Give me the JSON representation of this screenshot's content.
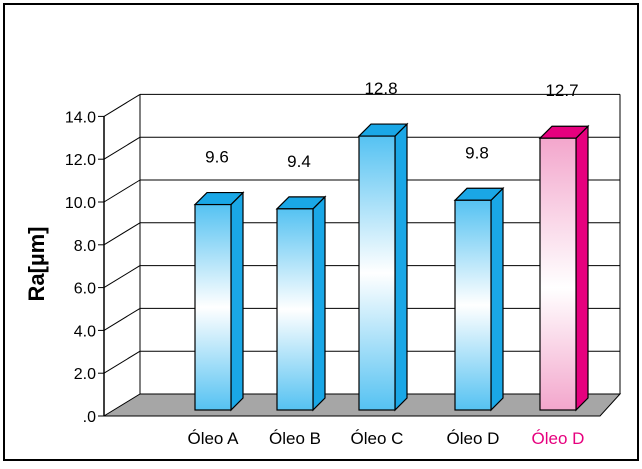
{
  "chart_data": {
    "type": "bar",
    "title": "",
    "xlabel": "",
    "ylabel": "Ra[µm]",
    "ylim": [
      0,
      14
    ],
    "yticks": [
      ".0",
      "2.0",
      "4.0",
      "6.0",
      "8.0",
      "10.0",
      "12.0",
      "14.0"
    ],
    "grid": true,
    "three_d": true,
    "categories": [
      "Óleo A",
      "Óleo B",
      "Óleo C",
      "Óleo D",
      "Óleo D"
    ],
    "values": [
      9.6,
      9.4,
      12.8,
      9.8,
      12.7
    ],
    "data_labels": [
      "9.6",
      "9.4",
      "12.8",
      "9.8",
      "12.7"
    ],
    "bar_colors": [
      "#1aa7e6",
      "#1aa7e6",
      "#1aa7e6",
      "#1aa7e6",
      "#e6007e"
    ],
    "category_label_colors": [
      "#000000",
      "#000000",
      "#000000",
      "#000000",
      "#e6007e"
    ]
  }
}
